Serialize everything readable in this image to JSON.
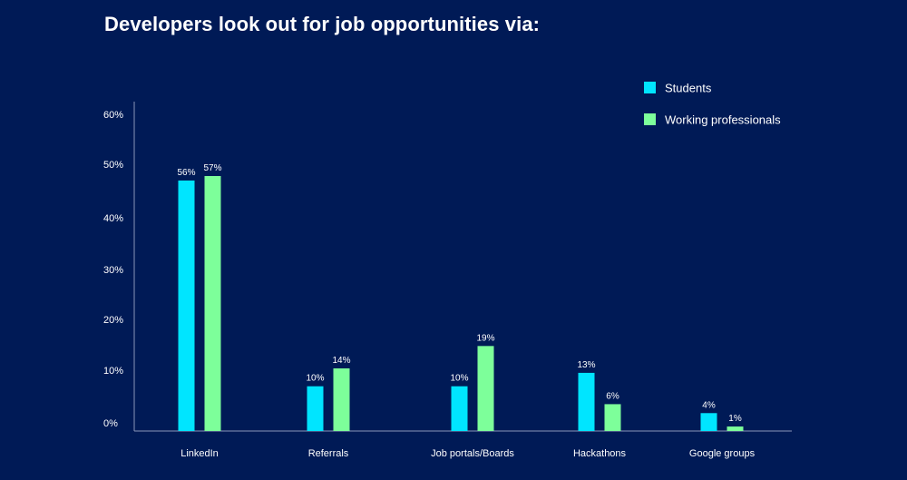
{
  "chart_data": {
    "type": "bar",
    "title": "Developers look out for job opportunities via:",
    "categories": [
      "LinkedIn",
      "Referrals",
      "Job portals/Boards",
      "Hackathons",
      "Google groups"
    ],
    "series": [
      {
        "name": "Students",
        "values": [
          56,
          10,
          10,
          13,
          4
        ],
        "labels": [
          "56%",
          "10%",
          "10%",
          "13%",
          "4%"
        ],
        "color": "#00e5ff"
      },
      {
        "name": "Working professionals",
        "values": [
          57,
          14,
          19,
          6,
          1
        ],
        "labels": [
          "57%",
          "14%",
          "19%",
          "6%",
          "1%"
        ],
        "color": "#7dff9a"
      }
    ],
    "yticks": [
      "0%",
      "10%",
      "20%",
      "30%",
      "40%",
      "50%",
      "60%"
    ],
    "ylim": [
      0,
      60
    ],
    "grid": false,
    "legend_position": "top-right",
    "colors": {
      "background": "#001a56",
      "axis": "#8a97b8",
      "text": "#ffffff"
    }
  }
}
